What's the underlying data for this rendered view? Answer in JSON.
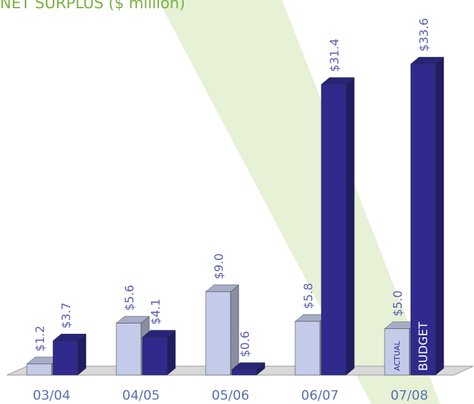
{
  "chart_data": {
    "type": "bar3d",
    "title": "NET SURPLUS ($ million)",
    "categories": [
      "03/04",
      "04/05",
      "05/06",
      "06/07",
      "07/08"
    ],
    "series": [
      {
        "name": "ACTUAL",
        "color": "#c4cbe9",
        "values": [
          1.2,
          5.6,
          9.0,
          5.8,
          5.0
        ],
        "value_labels": [
          "$1.2",
          "$5.6",
          "$9.0",
          "$5.8",
          "$5.0"
        ]
      },
      {
        "name": "BUDGET",
        "color": "#2f2a8c",
        "values": [
          3.7,
          4.1,
          0.6,
          31.4,
          33.6
        ],
        "value_labels": [
          "$3.7",
          "$4.1",
          "$0.6",
          "$31.4",
          "$33.6"
        ]
      }
    ]
  }
}
